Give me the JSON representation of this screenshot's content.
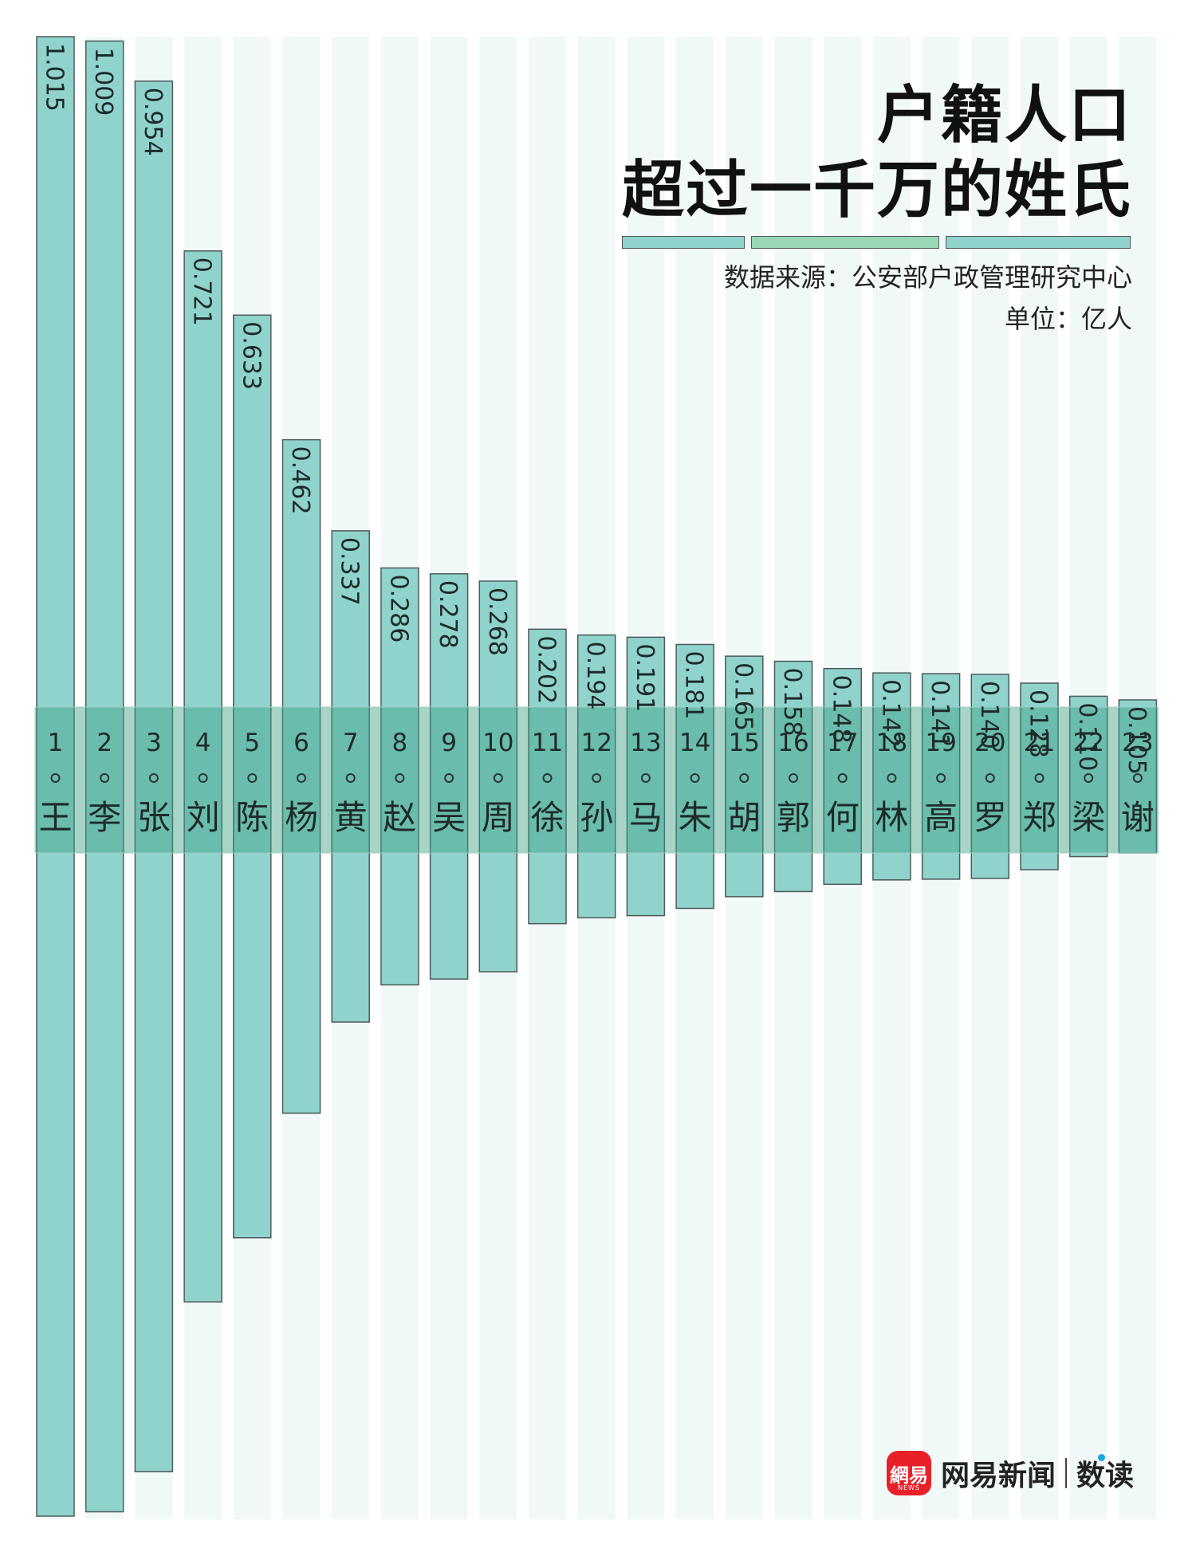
{
  "title": {
    "line1": "户籍人口",
    "line2": "超过一千万的姓氏"
  },
  "source": "数据来源：公安部户政管理研究中心",
  "unit": "单位：亿人",
  "brand": {
    "logo": "網易",
    "logo_sub": "NEWS",
    "name": "网易新闻",
    "section": "数读"
  },
  "colors": {
    "bar": "#8fd3cc",
    "bar_stroke": "#4e5a58",
    "column_bg": "#f1f9f8",
    "band": "#3f9f86",
    "title_bar_1": "#8fd3cc",
    "title_bar_2": "#9ad7b6",
    "title_bar_3": "#8fd3cc"
  },
  "chart_data": {
    "type": "bar",
    "title": "户籍人口超过一千万的姓氏",
    "unit": "亿人",
    "categories": [
      "王",
      "李",
      "张",
      "刘",
      "陈",
      "杨",
      "黄",
      "赵",
      "吴",
      "周",
      "徐",
      "孙",
      "马",
      "朱",
      "胡",
      "郭",
      "何",
      "林",
      "高",
      "罗",
      "郑",
      "梁",
      "谢"
    ],
    "ranks": [
      "1",
      "2",
      "3",
      "4",
      "5",
      "6",
      "7",
      "8",
      "9",
      "10",
      "11",
      "12",
      "13",
      "14",
      "15",
      "16",
      "17",
      "18",
      "19",
      "20",
      "21",
      "22",
      "23"
    ],
    "values": [
      1.015,
      1.009,
      0.954,
      0.721,
      0.633,
      0.462,
      0.337,
      0.286,
      0.278,
      0.268,
      0.202,
      0.194,
      0.191,
      0.181,
      0.165,
      0.158,
      0.148,
      0.142,
      0.141,
      0.14,
      0.128,
      0.11,
      0.105
    ],
    "value_labels": [
      "1.015",
      "1.009",
      "0.954",
      "0.721",
      "0.633",
      "0.462",
      "0.337",
      "0.286",
      "0.278",
      "0.268",
      "0.202",
      "0.194",
      "0.191",
      "0.181",
      "0.165",
      "0.158",
      "0.148",
      "0.142",
      "0.141",
      "0.140",
      "0.128",
      "0.110",
      "0.105"
    ],
    "legend": "none",
    "grid": false
  }
}
